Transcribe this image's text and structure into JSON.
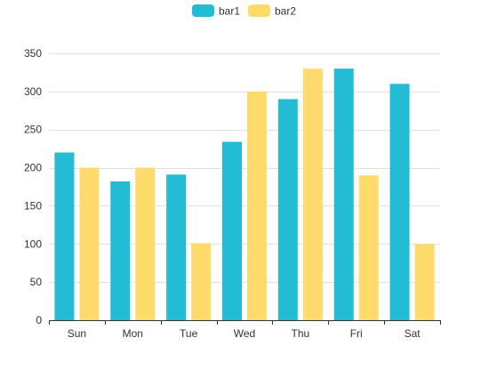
{
  "chart_data": {
    "type": "bar",
    "title": "",
    "xlabel": "",
    "ylabel": "",
    "categories": [
      "Sun",
      "Mon",
      "Tue",
      "Wed",
      "Thu",
      "Fri",
      "Sat"
    ],
    "series": [
      {
        "name": "bar1",
        "color": "#22bcd4",
        "values": [
          220,
          182,
          191,
          234,
          290,
          330,
          310
        ]
      },
      {
        "name": "bar2",
        "color": "#fedb6b",
        "values": [
          200,
          200,
          101,
          300,
          330,
          190,
          100
        ]
      }
    ],
    "ylim": [
      0,
      350
    ],
    "yticks": [
      0,
      50,
      100,
      150,
      200,
      250,
      300,
      350
    ],
    "grid": true,
    "legend_position": "top-center"
  }
}
